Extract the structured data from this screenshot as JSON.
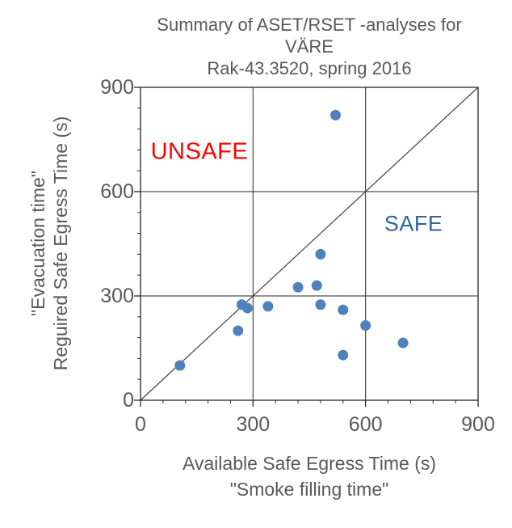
{
  "title": {
    "line1": "Summary of ASET/RSET -analyses for VÄRE",
    "line2": "Rak-43.3520, spring 2016"
  },
  "chart_data": {
    "type": "scatter",
    "title": "Summary of ASET/RSET -analyses for VÄRE Rak-43.3520, spring 2016",
    "xlabel": "Available Safe Egress Time (s)",
    "xlabel_sub": "\"Smoke filling time\"",
    "ylabel": "\"Evacuation time\"",
    "ylabel_sub": "Reguired Safe Egress Time (s)",
    "xlim": [
      0,
      900
    ],
    "ylim": [
      0,
      900
    ],
    "xticks": [
      0,
      300,
      600,
      900
    ],
    "yticks": [
      0,
      300,
      600,
      900
    ],
    "minor_tick_step": 60,
    "grid": true,
    "grid_positions": [
      300,
      600
    ],
    "legend_position": "none",
    "diagonal_line": {
      "x1": 0,
      "y1": 0,
      "x2": 900,
      "y2": 900
    },
    "series": [
      {
        "marker": "circle",
        "color": "#4F81BD",
        "points": [
          {
            "x": 105,
            "y": 100
          },
          {
            "x": 260,
            "y": 200
          },
          {
            "x": 270,
            "y": 275
          },
          {
            "x": 285,
            "y": 265
          },
          {
            "x": 340,
            "y": 270
          },
          {
            "x": 420,
            "y": 325
          },
          {
            "x": 470,
            "y": 330
          },
          {
            "x": 480,
            "y": 275
          },
          {
            "x": 480,
            "y": 420
          },
          {
            "x": 520,
            "y": 820
          },
          {
            "x": 540,
            "y": 130
          },
          {
            "x": 540,
            "y": 260
          },
          {
            "x": 600,
            "y": 215
          },
          {
            "x": 700,
            "y": 165
          }
        ]
      }
    ],
    "annotations": [
      {
        "text": "UNSAFE",
        "x": 157,
        "y": 714,
        "color": "#FF0000"
      },
      {
        "text": "SAFE",
        "x": 728,
        "y": 507,
        "color": "#31639C"
      }
    ]
  },
  "colors": {
    "text": "#595959",
    "axis_line": "#262626",
    "gridline": "#262626",
    "diagonal": "#404040",
    "marker": "#4F81BD",
    "background": "#FFFFFF"
  }
}
